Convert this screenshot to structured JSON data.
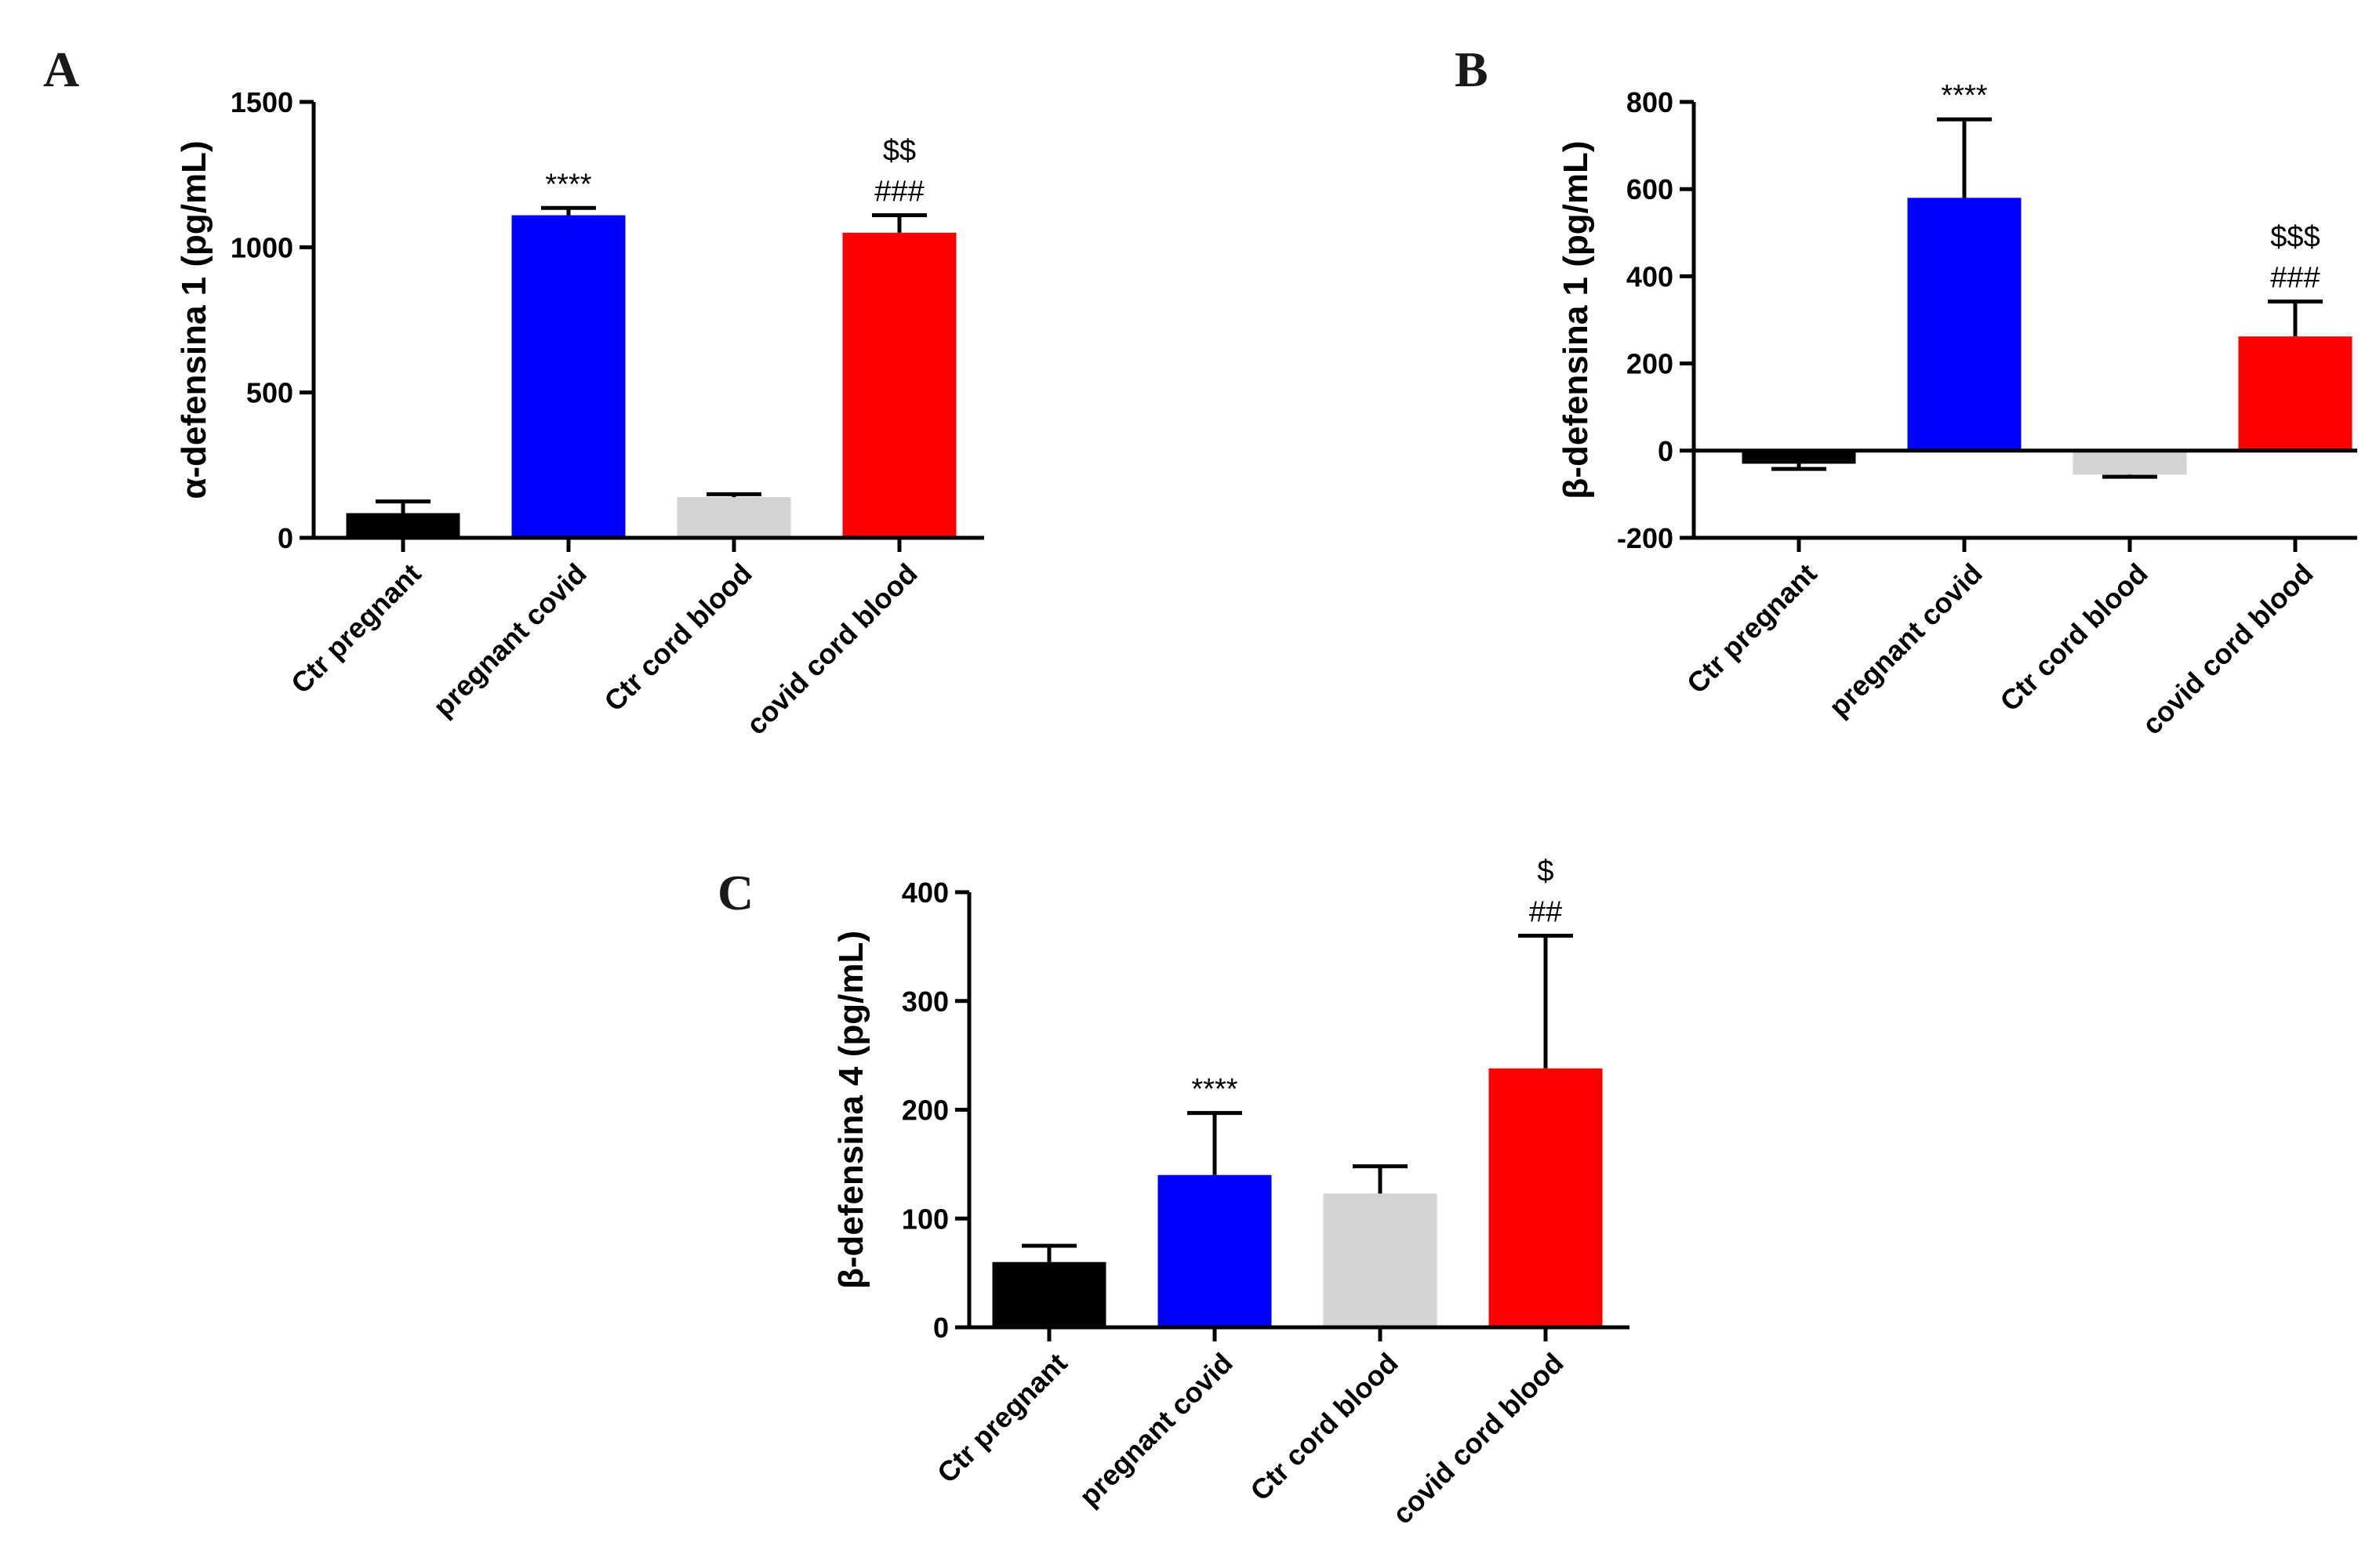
{
  "colors": {
    "Ctr pregnant": "#000000",
    "pregnant covid": "#0000ff",
    "Ctr cord blood": "#d3d3d3",
    "covid cord blood": "#ff0000"
  },
  "chart_data": [
    {
      "type": "bar",
      "panel": "A",
      "ylabel": "α-defensina 1 (pg/mL)",
      "categories": [
        "Ctr pregnant",
        "pregnant covid",
        "Ctr cord blood",
        "covid cord blood"
      ],
      "values": [
        85,
        1110,
        140,
        1050
      ],
      "errors": [
        40,
        25,
        10,
        60
      ],
      "annotations": [
        [],
        [
          "****"
        ],
        [],
        [
          "###",
          "$$"
        ]
      ],
      "ylim": [
        0,
        1500
      ],
      "yticks": [
        0,
        500,
        1000,
        1500
      ]
    },
    {
      "type": "bar",
      "panel": "B",
      "ylabel": "β-defensina 1 (pg/mL)",
      "categories": [
        "Ctr pregnant",
        "pregnant covid",
        "Ctr cord blood",
        "covid cord blood"
      ],
      "values": [
        -30,
        580,
        -55,
        262
      ],
      "errors": [
        12,
        180,
        5,
        80
      ],
      "annotations": [
        [],
        [
          "****"
        ],
        [],
        [
          "###",
          "$$$"
        ]
      ],
      "ylim": [
        -200,
        800
      ],
      "yticks": [
        -200,
        0,
        200,
        400,
        600,
        800
      ]
    },
    {
      "type": "bar",
      "panel": "C",
      "ylabel": "β-defensina 4 (pg/mL)",
      "categories": [
        "Ctr pregnant",
        "pregnant covid",
        "Ctr cord blood",
        "covid cord blood"
      ],
      "values": [
        60,
        140,
        123,
        238
      ],
      "errors": [
        15,
        57,
        25,
        122
      ],
      "annotations": [
        [],
        [
          "****"
        ],
        [],
        [
          "##",
          "$"
        ]
      ],
      "ylim": [
        0,
        400
      ],
      "yticks": [
        0,
        100,
        200,
        300,
        400
      ]
    }
  ]
}
